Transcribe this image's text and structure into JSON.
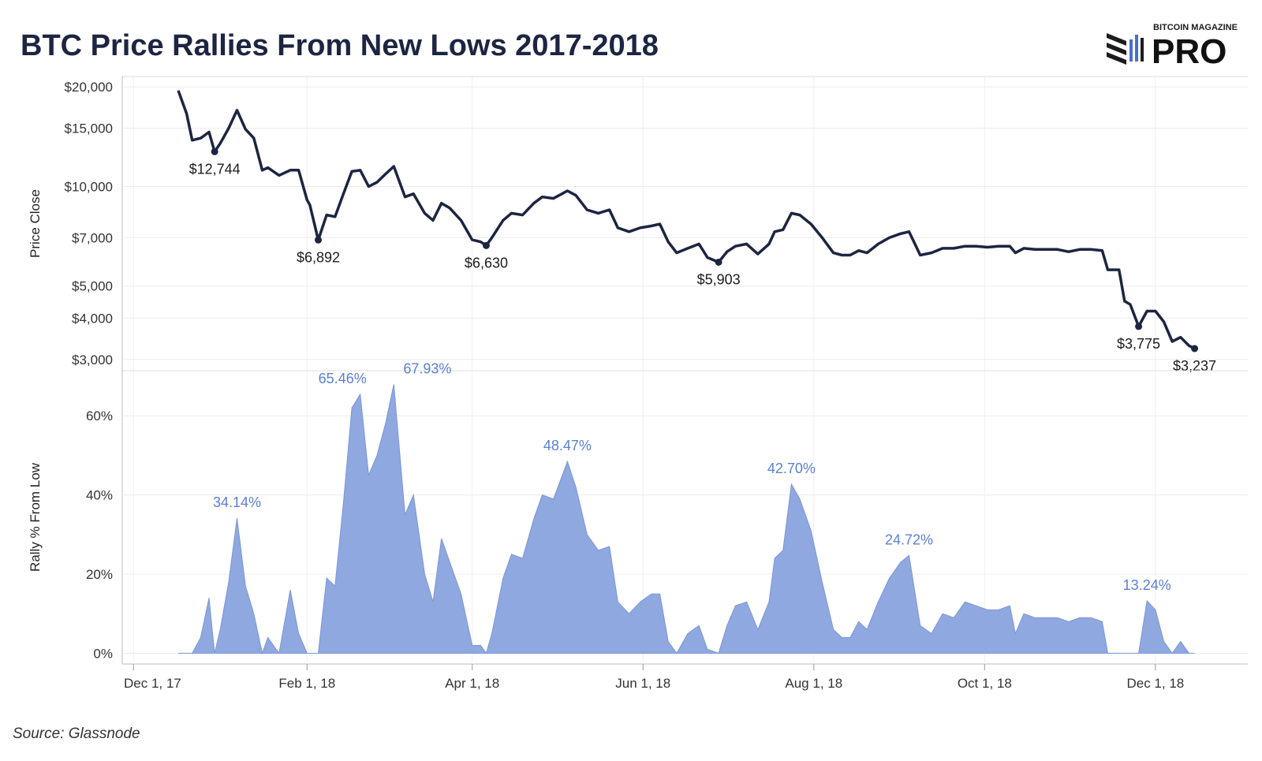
{
  "title": "BTC Price Rallies From New Lows 2017-2018",
  "logo": {
    "small": "BITCOIN MAGAZINE",
    "big": "PRO"
  },
  "source": "Source: Glassnode",
  "chart_data": [
    {
      "type": "line",
      "y_label": "Price Close",
      "color": "#1c2541",
      "log_scale": true,
      "grid": true,
      "x": [
        "2017-12-17",
        "2017-12-20",
        "2017-12-22",
        "2017-12-25",
        "2017-12-28",
        "2017-12-30",
        "2018-01-01",
        "2018-01-04",
        "2018-01-07",
        "2018-01-10",
        "2018-01-13",
        "2018-01-16",
        "2018-01-18",
        "2018-01-22",
        "2018-01-26",
        "2018-01-29",
        "2018-02-01",
        "2018-02-02",
        "2018-02-05",
        "2018-02-08",
        "2018-02-11",
        "2018-02-14",
        "2018-02-17",
        "2018-02-20",
        "2018-02-23",
        "2018-02-26",
        "2018-03-01",
        "2018-03-04",
        "2018-03-08",
        "2018-03-11",
        "2018-03-15",
        "2018-03-18",
        "2018-03-21",
        "2018-03-24",
        "2018-03-28",
        "2018-04-01",
        "2018-04-04",
        "2018-04-06",
        "2018-04-08",
        "2018-04-12",
        "2018-04-15",
        "2018-04-19",
        "2018-04-23",
        "2018-04-26",
        "2018-04-30",
        "2018-05-05",
        "2018-05-08",
        "2018-05-12",
        "2018-05-16",
        "2018-05-20",
        "2018-05-23",
        "2018-05-27",
        "2018-05-31",
        "2018-06-04",
        "2018-06-07",
        "2018-06-10",
        "2018-06-13",
        "2018-06-17",
        "2018-06-21",
        "2018-06-24",
        "2018-06-28",
        "2018-07-01",
        "2018-07-04",
        "2018-07-08",
        "2018-07-12",
        "2018-07-16",
        "2018-07-18",
        "2018-07-21",
        "2018-07-24",
        "2018-07-27",
        "2018-07-31",
        "2018-08-04",
        "2018-08-08",
        "2018-08-11",
        "2018-08-14",
        "2018-08-17",
        "2018-08-20",
        "2018-08-24",
        "2018-08-28",
        "2018-09-01",
        "2018-09-04",
        "2018-09-08",
        "2018-09-12",
        "2018-09-16",
        "2018-09-20",
        "2018-09-24",
        "2018-09-28",
        "2018-10-02",
        "2018-10-06",
        "2018-10-10",
        "2018-10-12",
        "2018-10-15",
        "2018-10-19",
        "2018-10-23",
        "2018-10-27",
        "2018-10-31",
        "2018-11-04",
        "2018-11-08",
        "2018-11-12",
        "2018-11-14",
        "2018-11-18",
        "2018-11-20",
        "2018-11-22",
        "2018-11-25",
        "2018-11-28",
        "2018-12-01",
        "2018-12-04",
        "2018-12-07",
        "2018-12-10",
        "2018-12-13",
        "2018-12-15"
      ],
      "values": [
        19500,
        16600,
        13800,
        14000,
        14600,
        12744,
        13500,
        15000,
        17000,
        14900,
        14000,
        11200,
        11400,
        10800,
        11200,
        11200,
        9100,
        8800,
        6892,
        8200,
        8100,
        9500,
        11100,
        11200,
        10000,
        10300,
        10900,
        11500,
        9300,
        9500,
        8300,
        7900,
        8900,
        8600,
        7900,
        6900,
        6800,
        6630,
        7000,
        7900,
        8300,
        8200,
        8900,
        9300,
        9200,
        9700,
        9400,
        8500,
        8300,
        8500,
        7500,
        7300,
        7500,
        7600,
        7700,
        6800,
        6300,
        6500,
        6700,
        6100,
        5903,
        6350,
        6600,
        6700,
        6250,
        6700,
        7300,
        7400,
        8300,
        8200,
        7700,
        7000,
        6300,
        6200,
        6200,
        6400,
        6300,
        6700,
        7000,
        7200,
        7300,
        6200,
        6300,
        6500,
        6500,
        6600,
        6600,
        6550,
        6600,
        6600,
        6300,
        6500,
        6450,
        6450,
        6450,
        6350,
        6450,
        6450,
        6400,
        5600,
        5600,
        4500,
        4400,
        3775,
        4200,
        4200,
        3900,
        3400,
        3500,
        3300,
        3237
      ],
      "xlim": [
        "2017-11-27",
        "2019-01-03"
      ],
      "ylim": [
        2775,
        21500
      ],
      "yticks": [
        {
          "value": 3000,
          "label": "$3,000"
        },
        {
          "value": 4000,
          "label": "$4,000"
        },
        {
          "value": 5000,
          "label": "$5,000"
        },
        {
          "value": 7000,
          "label": "$7,000"
        },
        {
          "value": 10000,
          "label": "$10,000"
        },
        {
          "value": 15000,
          "label": "$15,000"
        },
        {
          "value": 20000,
          "label": "$20,000"
        }
      ],
      "annotations": [
        {
          "x": "2017-12-30",
          "value": 12744,
          "label": "$12,744"
        },
        {
          "x": "2018-02-05",
          "value": 6892,
          "label": "$6,892"
        },
        {
          "x": "2018-04-06",
          "value": 6630,
          "label": "$6,630"
        },
        {
          "x": "2018-06-28",
          "value": 5903,
          "label": "$5,903"
        },
        {
          "x": "2018-11-25",
          "value": 3775,
          "label": "$3,775"
        },
        {
          "x": "2018-12-15",
          "value": 3237,
          "label": "$3,237"
        }
      ]
    },
    {
      "type": "area",
      "y_label": "Rally % From Low",
      "color": "#8fa8e0",
      "grid": true,
      "x": [
        "2017-12-17",
        "2017-12-20",
        "2017-12-22",
        "2017-12-25",
        "2017-12-28",
        "2017-12-30",
        "2018-01-01",
        "2018-01-04",
        "2018-01-07",
        "2018-01-10",
        "2018-01-13",
        "2018-01-16",
        "2018-01-18",
        "2018-01-22",
        "2018-01-26",
        "2018-01-29",
        "2018-02-01",
        "2018-02-02",
        "2018-02-05",
        "2018-02-08",
        "2018-02-11",
        "2018-02-14",
        "2018-02-17",
        "2018-02-20",
        "2018-02-23",
        "2018-02-26",
        "2018-03-01",
        "2018-03-04",
        "2018-03-08",
        "2018-03-11",
        "2018-03-15",
        "2018-03-18",
        "2018-03-21",
        "2018-03-24",
        "2018-03-28",
        "2018-04-01",
        "2018-04-04",
        "2018-04-06",
        "2018-04-08",
        "2018-04-12",
        "2018-04-15",
        "2018-04-19",
        "2018-04-23",
        "2018-04-26",
        "2018-04-30",
        "2018-05-05",
        "2018-05-08",
        "2018-05-12",
        "2018-05-16",
        "2018-05-20",
        "2018-05-23",
        "2018-05-27",
        "2018-05-31",
        "2018-06-04",
        "2018-06-07",
        "2018-06-10",
        "2018-06-13",
        "2018-06-17",
        "2018-06-21",
        "2018-06-24",
        "2018-06-28",
        "2018-07-01",
        "2018-07-04",
        "2018-07-08",
        "2018-07-12",
        "2018-07-16",
        "2018-07-18",
        "2018-07-21",
        "2018-07-24",
        "2018-07-27",
        "2018-07-31",
        "2018-08-04",
        "2018-08-08",
        "2018-08-11",
        "2018-08-14",
        "2018-08-17",
        "2018-08-20",
        "2018-08-24",
        "2018-08-28",
        "2018-09-01",
        "2018-09-04",
        "2018-09-08",
        "2018-09-12",
        "2018-09-16",
        "2018-09-20",
        "2018-09-24",
        "2018-09-28",
        "2018-10-02",
        "2018-10-06",
        "2018-10-10",
        "2018-10-12",
        "2018-10-15",
        "2018-10-19",
        "2018-10-23",
        "2018-10-27",
        "2018-10-31",
        "2018-11-04",
        "2018-11-08",
        "2018-11-12",
        "2018-11-14",
        "2018-11-18",
        "2018-11-20",
        "2018-11-22",
        "2018-11-25",
        "2018-11-28",
        "2018-12-01",
        "2018-12-04",
        "2018-12-07",
        "2018-12-10",
        "2018-12-13",
        "2018-12-15"
      ],
      "values": [
        0,
        0,
        0,
        4,
        14,
        0,
        6,
        18,
        34.14,
        17,
        10,
        0,
        4,
        0,
        16,
        5,
        0,
        0,
        0,
        19,
        17,
        38,
        62,
        65.46,
        45,
        50,
        58,
        67.93,
        35,
        40,
        20,
        13,
        29,
        23,
        15,
        2,
        2,
        0,
        5,
        19,
        25,
        24,
        34,
        40,
        39,
        48.47,
        42,
        30,
        26,
        27,
        13,
        10,
        13,
        15,
        15,
        3,
        0,
        5,
        7,
        1,
        0,
        7,
        12,
        13,
        6,
        13,
        24,
        26,
        42.7,
        39,
        31,
        18,
        6,
        4,
        4,
        8,
        6,
        13,
        19,
        23,
        24.72,
        7,
        5,
        10,
        9,
        13,
        12,
        11,
        11,
        12,
        5,
        10,
        9,
        9,
        9,
        8,
        9,
        9,
        8,
        0,
        0,
        0,
        0,
        0,
        13.24,
        11,
        3,
        0,
        3,
        0,
        0
      ],
      "xlim": [
        "2017-11-27",
        "2019-01-03"
      ],
      "ylim": [
        -2.7,
        71.4
      ],
      "yticks": [
        {
          "value": 0,
          "label": "0%"
        },
        {
          "value": 20,
          "label": "20%"
        },
        {
          "value": 40,
          "label": "40%"
        },
        {
          "value": 60,
          "label": "60%"
        }
      ],
      "xticks": [
        {
          "value": "2017-12-01",
          "label": "Dec 1, 17"
        },
        {
          "value": "2018-02-01",
          "label": "Feb 1, 18"
        },
        {
          "value": "2018-04-01",
          "label": "Apr 1, 18"
        },
        {
          "value": "2018-06-01",
          "label": "Jun 1, 18"
        },
        {
          "value": "2018-08-01",
          "label": "Aug 1, 18"
        },
        {
          "value": "2018-10-01",
          "label": "Oct 1, 18"
        },
        {
          "value": "2018-12-01",
          "label": "Dec 1, 18"
        }
      ],
      "annotations": [
        {
          "x": "2018-01-07",
          "value": 34.14,
          "label": "34.14%"
        },
        {
          "x": "2018-02-20",
          "value": 65.46,
          "label": "65.46%"
        },
        {
          "x": "2018-03-04",
          "value": 67.93,
          "label": "67.93%"
        },
        {
          "x": "2018-05-05",
          "value": 48.47,
          "label": "48.47%"
        },
        {
          "x": "2018-07-24",
          "value": 42.7,
          "label": "42.70%"
        },
        {
          "x": "2018-09-04",
          "value": 24.72,
          "label": "24.72%"
        },
        {
          "x": "2018-11-28",
          "value": 13.24,
          "label": "13.24%"
        }
      ]
    }
  ]
}
